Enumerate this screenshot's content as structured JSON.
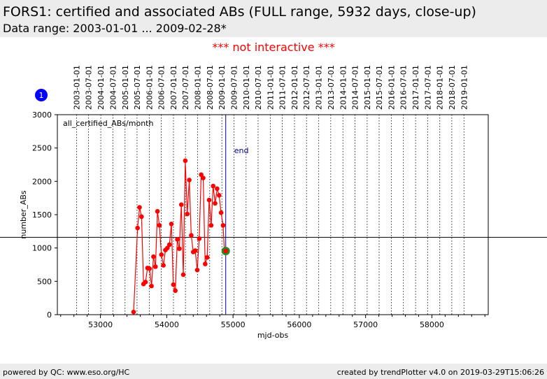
{
  "header": {
    "title": "FORS1: certified and associated ABs (FULL range, 5932 days, close-up)",
    "subtitle": "Data range: 2003-01-01 ... 2009-02-28*"
  },
  "notice": "*** not interactive ***",
  "footer": {
    "left": "powered by QC: www.eso.org/HC",
    "right": "created by trendPlotter v4.0 on 2019-03-29T15:06:26"
  },
  "colors": {
    "series": "#ff0000",
    "end_line": "#00008b",
    "badge": "#0000ff",
    "highlight": "#228b22"
  },
  "chart_data": {
    "type": "line",
    "xlabel": "mjd-obs",
    "ylabel": "number_ABs",
    "xlim": [
      52350,
      58850
    ],
    "ylim": [
      0,
      3000
    ],
    "x_ticks": [
      53000,
      54000,
      55000,
      56000,
      57000,
      58000
    ],
    "y_ticks": [
      0,
      500,
      1000,
      1500,
      2000,
      2500,
      3000
    ],
    "panel_label": "all_certified_ABs/month",
    "badge_label": "1",
    "reference_line": 1160,
    "end_marker": {
      "x": 54890,
      "label": "end"
    },
    "highlight_point": {
      "x": 54890,
      "y": 955
    },
    "date_ticks": [
      {
        "mjd": 52640,
        "label": "2003-01-01"
      },
      {
        "mjd": 52821,
        "label": "2003-07-01"
      },
      {
        "mjd": 53005,
        "label": "2004-01-01"
      },
      {
        "mjd": 53187,
        "label": "2004-07-01"
      },
      {
        "mjd": 53371,
        "label": "2005-01-01"
      },
      {
        "mjd": 53552,
        "label": "2005-07-01"
      },
      {
        "mjd": 53736,
        "label": "2006-01-01"
      },
      {
        "mjd": 53917,
        "label": "2006-07-01"
      },
      {
        "mjd": 54101,
        "label": "2007-01-01"
      },
      {
        "mjd": 54282,
        "label": "2007-07-01"
      },
      {
        "mjd": 54466,
        "label": "2008-01-01"
      },
      {
        "mjd": 54648,
        "label": "2008-07-01"
      },
      {
        "mjd": 54832,
        "label": "2009-01-01"
      },
      {
        "mjd": 55013,
        "label": "2009-07-01"
      },
      {
        "mjd": 55197,
        "label": "2010-01-01"
      },
      {
        "mjd": 55378,
        "label": "2010-07-01"
      },
      {
        "mjd": 55562,
        "label": "2011-01-01"
      },
      {
        "mjd": 55743,
        "label": "2011-07-01"
      },
      {
        "mjd": 55927,
        "label": "2012-01-01"
      },
      {
        "mjd": 56109,
        "label": "2012-07-01"
      },
      {
        "mjd": 56293,
        "label": "2013-01-01"
      },
      {
        "mjd": 56474,
        "label": "2013-07-01"
      },
      {
        "mjd": 56658,
        "label": "2014-01-01"
      },
      {
        "mjd": 56839,
        "label": "2014-07-01"
      },
      {
        "mjd": 57023,
        "label": "2015-01-01"
      },
      {
        "mjd": 57204,
        "label": "2015-07-01"
      },
      {
        "mjd": 57388,
        "label": "2016-01-01"
      },
      {
        "mjd": 57570,
        "label": "2016-07-01"
      },
      {
        "mjd": 57754,
        "label": "2017-01-01"
      },
      {
        "mjd": 57935,
        "label": "2017-07-01"
      },
      {
        "mjd": 58119,
        "label": "2018-01-01"
      },
      {
        "mjd": 58300,
        "label": "2018-07-01"
      },
      {
        "mjd": 58484,
        "label": "2019-01-01"
      }
    ],
    "series": [
      {
        "x": [
          53500,
          53560,
          53590,
          53620,
          53650,
          53680,
          53710,
          53740,
          53770,
          53800,
          53830,
          53860,
          53890,
          53920,
          53950,
          53980,
          54010,
          54040,
          54070,
          54100,
          54130,
          54160,
          54190,
          54220,
          54250,
          54280,
          54310,
          54340,
          54370,
          54400,
          54430,
          54460,
          54490,
          54520,
          54550,
          54580,
          54610,
          54640,
          54670,
          54700,
          54730,
          54760,
          54790,
          54820,
          54850,
          54870,
          54890
        ],
        "y": [
          40,
          1300,
          1610,
          1470,
          460,
          490,
          700,
          690,
          430,
          870,
          720,
          1550,
          1340,
          900,
          740,
          970,
          1000,
          1050,
          1360,
          450,
          360,
          1130,
          990,
          1650,
          600,
          2310,
          1510,
          2020,
          1190,
          940,
          960,
          670,
          1140,
          2100,
          2050,
          760,
          860,
          1720,
          1340,
          1930,
          1670,
          1890,
          1790,
          1530,
          1340,
          960,
          955
        ]
      }
    ]
  }
}
